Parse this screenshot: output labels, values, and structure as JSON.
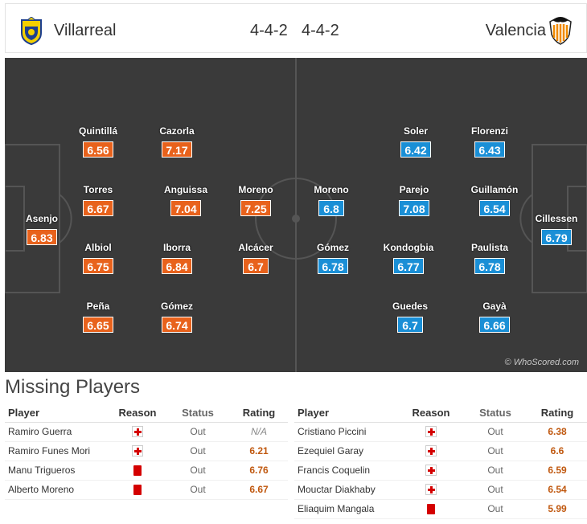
{
  "header": {
    "home_team": "Villarreal",
    "home_formation": "4-4-2",
    "away_formation": "4-4-2",
    "away_team": "Valencia"
  },
  "colors": {
    "home_rating": "#e8621c",
    "away_rating": "#1a8fd6",
    "pitch": "#3a3a3a"
  },
  "pitch": {
    "watermark": "© WhoScored.com",
    "home_players": [
      {
        "name": "Asenjo",
        "rating": "6.83"
      },
      {
        "name": "Quintillá",
        "rating": "6.56"
      },
      {
        "name": "Torres",
        "rating": "6.67"
      },
      {
        "name": "Albiol",
        "rating": "6.75"
      },
      {
        "name": "Peña",
        "rating": "6.65"
      },
      {
        "name": "Cazorla",
        "rating": "7.17"
      },
      {
        "name": "Anguissa",
        "rating": "7.04"
      },
      {
        "name": "Iborra",
        "rating": "6.84"
      },
      {
        "name": "Gómez",
        "rating": "6.74"
      },
      {
        "name": "Moreno",
        "rating": "7.25"
      },
      {
        "name": "Alcácer",
        "rating": "6.7"
      }
    ],
    "away_players": [
      {
        "name": "Cillessen",
        "rating": "6.79"
      },
      {
        "name": "Florenzi",
        "rating": "6.43"
      },
      {
        "name": "Guillamón",
        "rating": "6.54"
      },
      {
        "name": "Paulista",
        "rating": "6.78"
      },
      {
        "name": "Gayà",
        "rating": "6.66"
      },
      {
        "name": "Soler",
        "rating": "6.42"
      },
      {
        "name": "Parejo",
        "rating": "7.08"
      },
      {
        "name": "Kondogbia",
        "rating": "6.77"
      },
      {
        "name": "Guedes",
        "rating": "6.7"
      },
      {
        "name": "Moreno",
        "rating": "6.8"
      },
      {
        "name": "Gómez",
        "rating": "6.78"
      }
    ]
  },
  "missing": {
    "title": "Missing Players",
    "headers": {
      "player": "Player",
      "reason": "Reason",
      "status": "Status",
      "rating": "Rating"
    },
    "home": [
      {
        "player": "Ramiro Guerra",
        "reason": "injury-icon",
        "status": "Out",
        "rating": "N/A"
      },
      {
        "player": "Ramiro Funes Mori",
        "reason": "injury-icon",
        "status": "Out",
        "rating": "6.21"
      },
      {
        "player": "Manu Trigueros",
        "reason": "red-card-icon",
        "status": "Out",
        "rating": "6.76"
      },
      {
        "player": "Alberto Moreno",
        "reason": "red-card-icon",
        "status": "Out",
        "rating": "6.67"
      }
    ],
    "away": [
      {
        "player": "Cristiano Piccini",
        "reason": "injury-icon",
        "status": "Out",
        "rating": "6.38"
      },
      {
        "player": "Ezequiel Garay",
        "reason": "injury-icon",
        "status": "Out",
        "rating": "6.6"
      },
      {
        "player": "Francis Coquelin",
        "reason": "injury-icon",
        "status": "Out",
        "rating": "6.59"
      },
      {
        "player": "Mouctar Diakhaby",
        "reason": "injury-icon",
        "status": "Out",
        "rating": "6.54"
      },
      {
        "player": "Eliaquim Mangala",
        "reason": "red-card-icon",
        "status": "Out",
        "rating": "5.99"
      }
    ]
  }
}
